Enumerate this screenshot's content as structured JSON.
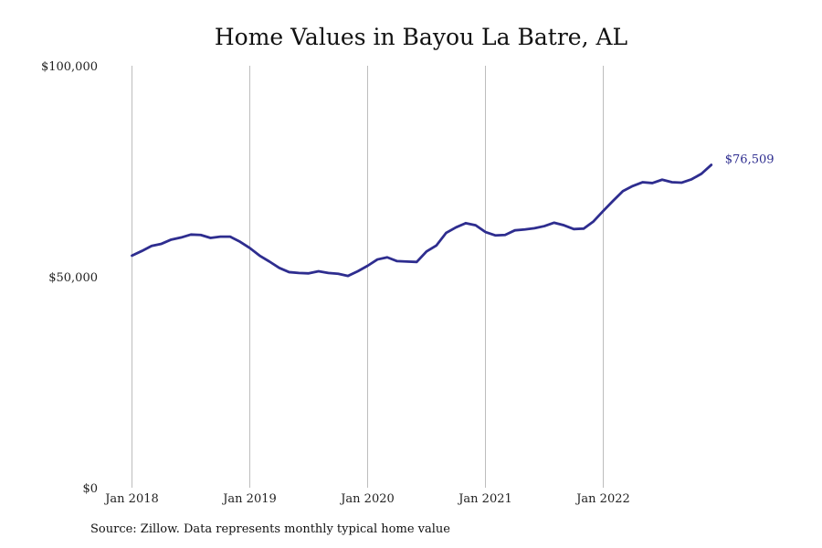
{
  "chart_data": {
    "type": "line",
    "title": "Home Values in Bayou La Batre, AL",
    "xlabel": "",
    "ylabel": "",
    "ylim": [
      0,
      100000
    ],
    "y_ticks": [
      {
        "value": 0,
        "label": "$0"
      },
      {
        "value": 50000,
        "label": "$50,000"
      },
      {
        "value": 100000,
        "label": "$100,000"
      }
    ],
    "x_ticks": [
      {
        "date": "2018-01",
        "label": "Jan 2018"
      },
      {
        "date": "2019-01",
        "label": "Jan 2019"
      },
      {
        "date": "2020-01",
        "label": "Jan 2020"
      },
      {
        "date": "2021-01",
        "label": "Jan 2021"
      },
      {
        "date": "2022-01",
        "label": "Jan 2022"
      }
    ],
    "grid": "vertical",
    "color": "#2e2d8f",
    "series": [
      {
        "x": [
          "2018-01",
          "2018-02",
          "2018-03",
          "2018-04",
          "2018-05",
          "2018-06",
          "2018-07",
          "2018-08",
          "2018-09",
          "2018-10",
          "2018-11",
          "2018-12",
          "2019-01",
          "2019-02",
          "2019-03",
          "2019-04",
          "2019-05",
          "2019-06",
          "2019-07",
          "2019-08",
          "2019-09",
          "2019-10",
          "2019-11",
          "2019-12",
          "2020-01",
          "2020-02",
          "2020-03",
          "2020-04",
          "2020-05",
          "2020-06",
          "2020-07",
          "2020-08",
          "2020-09",
          "2020-10",
          "2020-11",
          "2020-12",
          "2021-01",
          "2021-02",
          "2021-03",
          "2021-04",
          "2021-05",
          "2021-06",
          "2021-07",
          "2021-08",
          "2021-09",
          "2021-10",
          "2021-11",
          "2021-12",
          "2022-01",
          "2022-02",
          "2022-03",
          "2022-04",
          "2022-05",
          "2022-06",
          "2022-07",
          "2022-08",
          "2022-09",
          "2022-10",
          "2022-11",
          "2022-12"
        ],
        "values": [
          55000,
          56100,
          57300,
          57800,
          58800,
          59300,
          60000,
          59900,
          59200,
          59500,
          59500,
          58300,
          56800,
          55000,
          53600,
          52100,
          51100,
          50900,
          50800,
          51300,
          50900,
          50700,
          50200,
          51300,
          52600,
          54100,
          54600,
          53700,
          53600,
          53500,
          56000,
          57400,
          60400,
          61700,
          62700,
          62200,
          60600,
          59800,
          59900,
          61000,
          61200,
          61500,
          62000,
          62800,
          62200,
          61300,
          61400,
          63100,
          65600,
          68000,
          70300,
          71500,
          72400,
          72200,
          73000,
          72400,
          72300,
          73100,
          74400,
          76509
        ]
      }
    ],
    "end_label": "$76,509",
    "source": "Source: Zillow. Data represents monthly typical home value"
  }
}
